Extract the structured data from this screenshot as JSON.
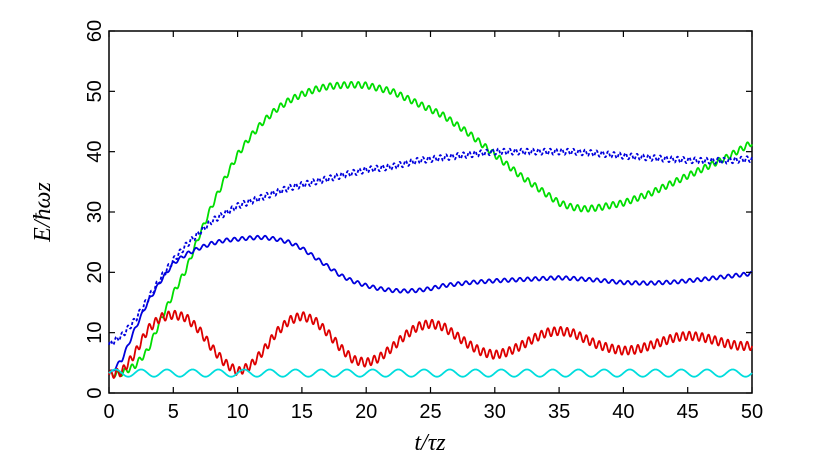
{
  "chart_data": {
    "type": "line",
    "xlabel": "t/τz",
    "ylabel": "E/ħωz",
    "xlim": [
      0,
      50
    ],
    "ylim": [
      0,
      60
    ],
    "x_ticks": [
      0,
      5,
      10,
      15,
      20,
      25,
      30,
      35,
      40,
      45,
      50
    ],
    "y_ticks": [
      0,
      10,
      20,
      30,
      40,
      50,
      60
    ],
    "grid": false,
    "series": [
      {
        "color": "#00dd00",
        "style": "solid",
        "osc_amp": 0.5,
        "osc_period": 0.55,
        "x": [
          0,
          1,
          2,
          3,
          4,
          5,
          6,
          7,
          8,
          9,
          10,
          11,
          12,
          13,
          14,
          15,
          16,
          17,
          18,
          19,
          20,
          22,
          24,
          26,
          28,
          30,
          32,
          34,
          35,
          36,
          37,
          38,
          40,
          42,
          44,
          46,
          48,
          50
        ],
        "y": [
          3,
          3.3,
          4.5,
          7,
          12,
          16.5,
          20.5,
          26,
          31,
          35.5,
          39.5,
          42.5,
          45,
          47,
          48.5,
          49.5,
          50.3,
          50.8,
          51,
          51.1,
          51,
          50,
          48,
          46,
          43,
          39.5,
          36,
          33,
          31.5,
          30.8,
          30.5,
          30.7,
          31.5,
          33,
          35,
          37,
          39,
          41.5
        ]
      },
      {
        "color": "#0000dd",
        "style": "dotted",
        "osc_amp": 0.5,
        "osc_period": 0.45,
        "x": [
          0,
          1,
          2,
          3,
          4,
          5,
          6,
          7,
          8,
          10,
          12,
          14,
          16,
          18,
          20,
          22,
          24,
          26,
          28,
          30,
          32,
          34,
          36,
          38,
          40,
          42,
          44,
          46,
          48,
          50
        ],
        "y": [
          8,
          9.5,
          12,
          15.5,
          19,
          22,
          24.5,
          26.5,
          28.5,
          31,
          32.5,
          34,
          35,
          36,
          37,
          37.5,
          38.5,
          39,
          39.5,
          40,
          40,
          40,
          40,
          39.7,
          39.3,
          39,
          38.7,
          38.5,
          38.5,
          38.8
        ]
      },
      {
        "color": "#0000dd",
        "style": "solid",
        "osc_amp": 0.3,
        "osc_period": 0.6,
        "x": [
          0,
          1,
          2,
          3,
          4,
          5,
          6,
          7,
          8,
          9,
          10,
          11,
          12,
          13,
          14,
          15,
          16,
          17,
          18,
          19,
          20,
          21,
          22,
          23,
          24,
          25,
          26,
          28,
          30,
          32,
          34,
          35,
          36,
          38,
          40,
          42,
          44,
          46,
          48,
          50
        ],
        "y": [
          3,
          5.5,
          10.5,
          15,
          18.5,
          21.5,
          23,
          24,
          24.8,
          25.3,
          25.5,
          25.7,
          25.8,
          25.5,
          25,
          24,
          22.5,
          21,
          19.5,
          18.5,
          17.8,
          17.3,
          17,
          16.9,
          17,
          17.3,
          17.8,
          18.3,
          18.6,
          18.8,
          19,
          19.1,
          19,
          18.7,
          18.3,
          18.2,
          18.4,
          18.8,
          19.3,
          19.8
        ]
      },
      {
        "color": "#dd0000",
        "style": "solid",
        "osc_amp": 0.7,
        "osc_period": 0.5,
        "x": [
          0,
          1,
          2,
          3,
          4,
          5,
          6,
          7,
          8,
          9,
          10,
          11,
          12,
          13,
          14,
          15,
          16,
          17,
          18,
          19,
          20,
          21,
          22,
          23,
          24,
          25,
          26,
          27,
          28,
          29,
          30,
          31,
          32,
          33,
          34,
          35,
          36,
          37,
          38,
          39,
          40,
          41,
          42,
          43,
          44,
          45,
          46,
          47,
          48,
          49,
          50
        ],
        "y": [
          3,
          3.5,
          6.5,
          10.5,
          12.5,
          13,
          12.5,
          10.5,
          7.5,
          5,
          3.5,
          4.5,
          7,
          10,
          12,
          12.8,
          12,
          10,
          7.5,
          5.5,
          5,
          5.8,
          7.5,
          9.5,
          11,
          11.5,
          11,
          9.5,
          8,
          6.8,
          6.3,
          6.8,
          7.8,
          9,
          10,
          10.3,
          10,
          9,
          8,
          7.4,
          7,
          7.2,
          7.8,
          8.5,
          9.2,
          9.5,
          9.3,
          8.8,
          8.2,
          7.8,
          7.8
        ]
      },
      {
        "color": "#00dddd",
        "style": "solid",
        "osc_amp": 0.6,
        "osc_period": 2.0,
        "x": [
          0,
          50
        ],
        "y": [
          3.3,
          3.3
        ]
      }
    ]
  }
}
